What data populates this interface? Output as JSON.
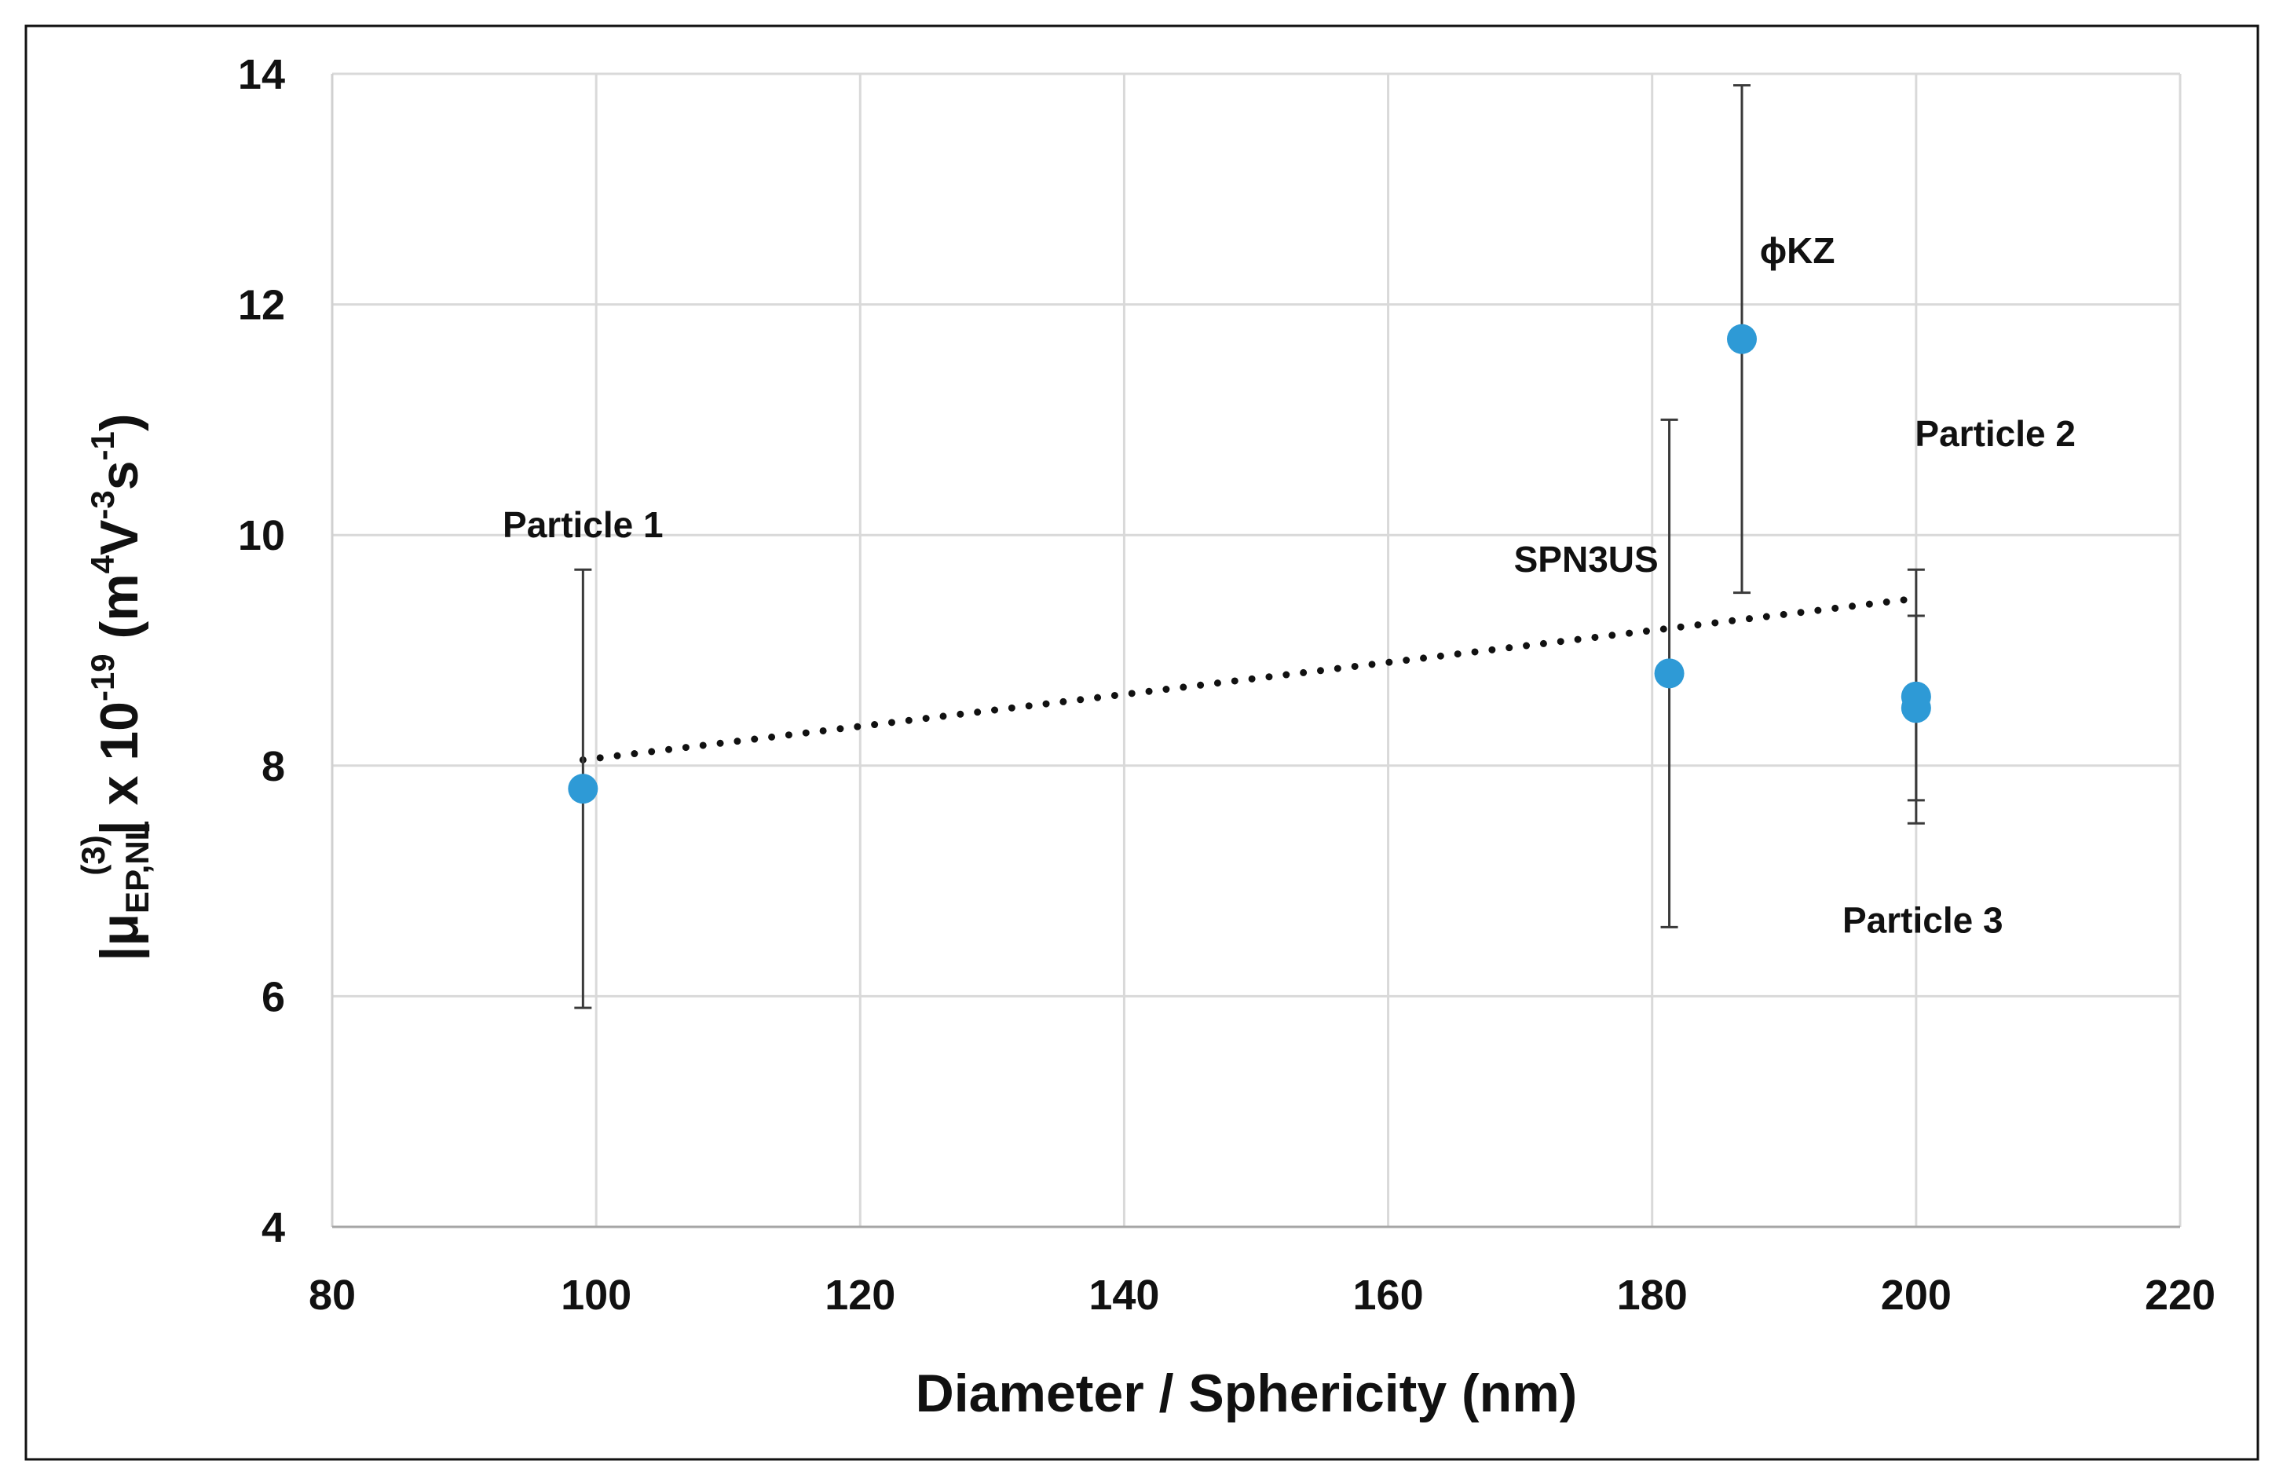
{
  "chart_data": {
    "type": "scatter",
    "title": "",
    "xlabel": "Diameter / Sphericity (nm)",
    "ylabel": {
      "prefix": "|μ",
      "sub": "EP,NL",
      "sup": "(3)",
      "mid": "| x 10",
      "exp": "-19",
      "unit_open": " (m",
      "unit_exp1": "4",
      "unit_v": "V",
      "unit_exp2": "-3",
      "unit_s": "s",
      "unit_exp3": "-1",
      "unit_close": ")"
    },
    "xlim": [
      80,
      220
    ],
    "ylim": [
      4,
      14
    ],
    "xticks": [
      80,
      100,
      120,
      140,
      160,
      180,
      200,
      220
    ],
    "yticks": [
      4,
      6,
      8,
      10,
      12,
      14
    ],
    "grid": true,
    "marker_color": "#2e9ad6",
    "points": [
      {
        "x": 99,
        "y": 7.8,
        "err_low": 5.9,
        "err_high": 9.7
      },
      {
        "x": 181.3,
        "y": 8.8,
        "err_low": 6.6,
        "err_high": 11.0
      },
      {
        "x": 186.8,
        "y": 11.7,
        "err_low": 9.5,
        "err_high": 13.9
      },
      {
        "x": 200,
        "y": 8.6,
        "err_low": 7.7,
        "err_high": 9.7
      },
      {
        "x": 200,
        "y": 8.5,
        "err_low": 7.5,
        "err_high": 9.3
      }
    ],
    "trendline": {
      "style": "dotted",
      "x": [
        99,
        200
      ],
      "y": [
        8.05,
        9.45
      ]
    },
    "annotations": [
      {
        "text": "Particle 1",
        "x": 99,
        "y": 9.98
      },
      {
        "text": "SPN3US",
        "x": 175,
        "y": 9.68
      },
      {
        "text": "ϕKZ",
        "x": 191,
        "y": 12.36
      },
      {
        "text": "Particle 2",
        "x": 206,
        "y": 10.77
      },
      {
        "text": "Particle 3",
        "x": 200.5,
        "y": 6.55
      }
    ]
  }
}
